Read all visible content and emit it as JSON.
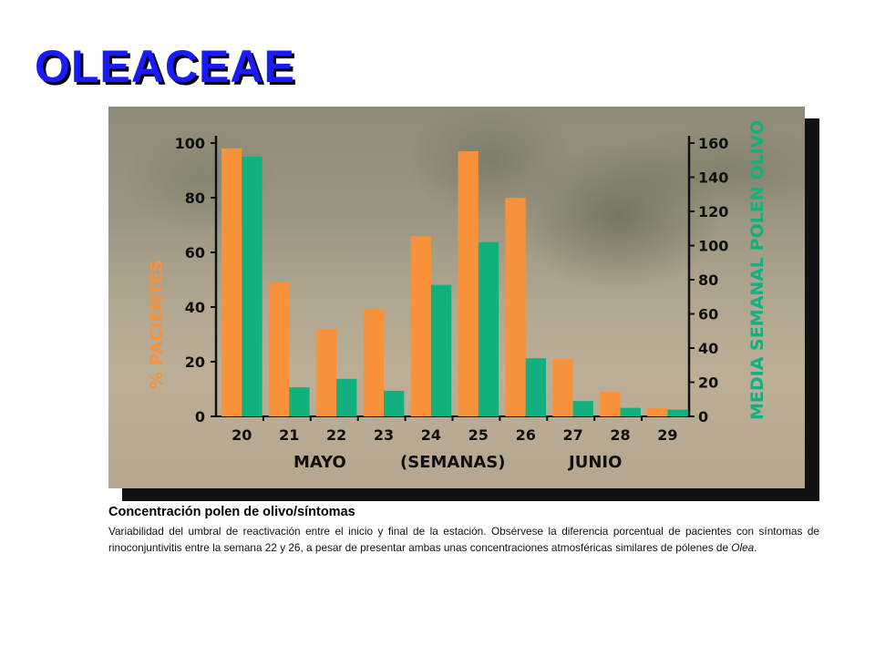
{
  "page": {
    "title": "OLEACEAE",
    "caption_title": "Concentración polen de olivo/síntomas",
    "caption_text": "Variabilidad del umbral de reactivación entre el inicio y final de la estación. Obsérvese la diferencia porcentual de pacientes con síntomas de rinoconjuntivitis entre la semana 22 y 26, a pesar de presentar ambas unas concentraciones atmosféricas similares de pólenes de",
    "caption_italic": "Olea",
    "caption_end": "."
  },
  "chart_data": {
    "type": "bar",
    "categories": [
      "20",
      "21",
      "22",
      "23",
      "24",
      "25",
      "26",
      "27",
      "28",
      "29"
    ],
    "series": [
      {
        "name": "% PACIENTES",
        "axis": "left",
        "color": "#f7923a",
        "values": [
          98,
          49,
          32,
          39,
          66,
          97,
          80,
          21,
          9,
          3
        ]
      },
      {
        "name": "MEDIA SEMANAL POLEN OLIVO",
        "axis": "right",
        "color": "#12b07e",
        "values": [
          152,
          17,
          22,
          15,
          77,
          102,
          34,
          9,
          5,
          4
        ]
      }
    ],
    "ylabel_left": "% PACIENTES",
    "ylabel_right": "MEDIA SEMANAL POLEN OLIVO",
    "ylim_left": [
      0,
      100
    ],
    "ylim_right": [
      0,
      160
    ],
    "yticks_left": [
      "0",
      "20",
      "40",
      "60",
      "80",
      "100"
    ],
    "yticks_right": [
      "0",
      "20",
      "40",
      "60",
      "80",
      "100",
      "120",
      "140",
      "160"
    ],
    "xlabels": {
      "left": "MAYO",
      "center": "(SEMANAS)",
      "right": "JUNIO"
    },
    "colors": {
      "left_axis_label": "#f7923a",
      "right_axis_label": "#12b07e",
      "axis": "#111111"
    }
  }
}
